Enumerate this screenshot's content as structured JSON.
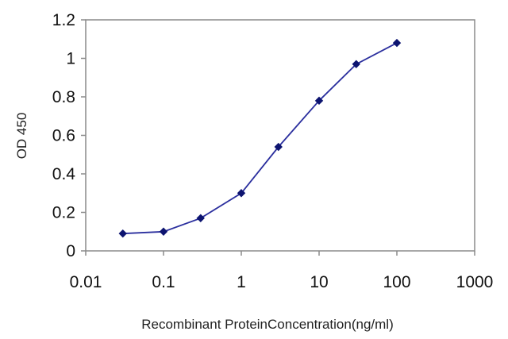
{
  "chart_data": {
    "type": "line",
    "title": "",
    "xlabel": "Recombinant ProteinConcentration(ng/ml)",
    "ylabel": "OD 450",
    "x_scale": "log",
    "xlim": [
      0.01,
      1000
    ],
    "ylim": [
      0,
      1.2
    ],
    "x_ticks": [
      "0.01",
      "0.1",
      "1",
      "10",
      "100",
      "1000"
    ],
    "y_ticks": [
      "0",
      "0.2",
      "0.4",
      "0.6",
      "0.8",
      "1",
      "1.2"
    ],
    "grid": false,
    "legend": "none",
    "series": [
      {
        "color": "#2b2f9e",
        "marker_color": "#0d1470",
        "points": [
          {
            "x": 0.03,
            "y": 0.09
          },
          {
            "x": 0.1,
            "y": 0.1
          },
          {
            "x": 0.3,
            "y": 0.17
          },
          {
            "x": 1,
            "y": 0.3
          },
          {
            "x": 3,
            "y": 0.54
          },
          {
            "x": 10,
            "y": 0.78
          },
          {
            "x": 30,
            "y": 0.97
          },
          {
            "x": 100,
            "y": 1.08
          }
        ]
      }
    ]
  }
}
